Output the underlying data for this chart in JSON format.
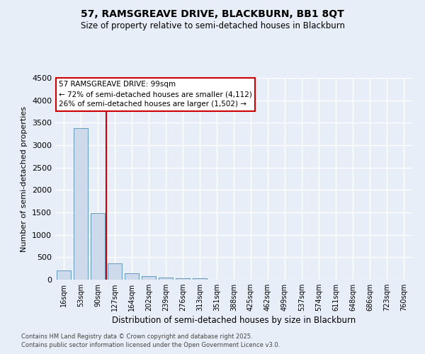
{
  "title1": "57, RAMSGREAVE DRIVE, BLACKBURN, BB1 8QT",
  "title2": "Size of property relative to semi-detached houses in Blackburn",
  "xlabel": "Distribution of semi-detached houses by size in Blackburn",
  "ylabel": "Number of semi-detached properties",
  "categories": [
    "16sqm",
    "53sqm",
    "90sqm",
    "127sqm",
    "164sqm",
    "202sqm",
    "239sqm",
    "276sqm",
    "313sqm",
    "351sqm",
    "388sqm",
    "425sqm",
    "462sqm",
    "499sqm",
    "537sqm",
    "574sqm",
    "611sqm",
    "648sqm",
    "686sqm",
    "723sqm",
    "760sqm"
  ],
  "values": [
    200,
    3380,
    1490,
    370,
    150,
    85,
    50,
    30,
    25,
    5,
    0,
    0,
    0,
    0,
    0,
    0,
    0,
    0,
    0,
    0,
    0
  ],
  "bar_color": "#ccdaeb",
  "bar_edge_color": "#6699bb",
  "highlight_color": "#cc0000",
  "annotation_title": "57 RAMSGREAVE DRIVE: 99sqm",
  "annotation_line1": "← 72% of semi-detached houses are smaller (4,112)",
  "annotation_line2": "26% of semi-detached houses are larger (1,502) →",
  "ylim_max": 4500,
  "ytick_step": 500,
  "footer1": "Contains HM Land Registry data © Crown copyright and database right 2025.",
  "footer2": "Contains public sector information licensed under the Open Government Licence v3.0.",
  "bg_color": "#e8eef7",
  "grid_color": "#ffffff",
  "title_fontsize": 10,
  "subtitle_fontsize": 8.5,
  "ylabel_fontsize": 8,
  "xlabel_fontsize": 8.5,
  "tick_fontsize": 7,
  "footer_fontsize": 6,
  "annot_fontsize": 7.5
}
